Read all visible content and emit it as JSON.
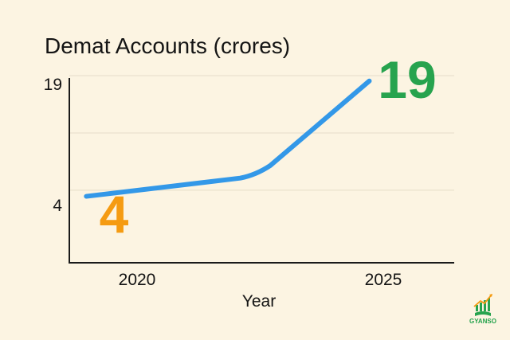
{
  "chart_data": {
    "type": "line",
    "title": "Demat Accounts (crores)",
    "xlabel": "Year",
    "ylabel": "",
    "x": [
      2020,
      2023,
      2025
    ],
    "y": [
      3.2,
      6,
      18.3
    ],
    "x_ticks": [
      "2020",
      "2025"
    ],
    "y_ticks": [
      "19",
      "4"
    ],
    "xlim": [
      2019.7,
      2026.5
    ],
    "ylim": [
      -5.5,
      19
    ],
    "grid": true,
    "line_color": "#3398e8",
    "annotations": [
      {
        "text": "4",
        "color": "#f59b12"
      },
      {
        "text": "19",
        "color": "#27a34e"
      }
    ]
  },
  "logo": {
    "text": "GYANSO",
    "icon": "growth-chart-icon"
  }
}
